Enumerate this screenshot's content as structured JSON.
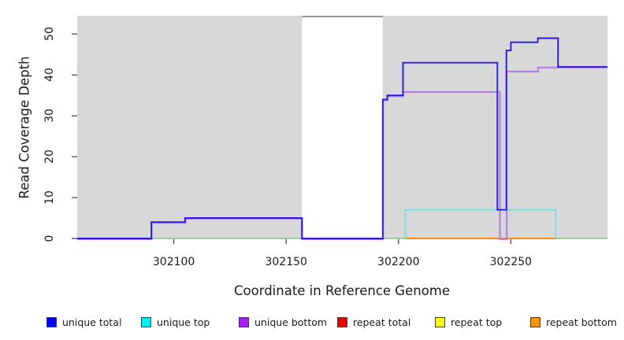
{
  "figure": {
    "background": "#ffffff",
    "plot_background": "#d8d8d8",
    "gap_band_color": "#ffffff",
    "gap_band_border_color": "#999999",
    "tick_color": "#595959",
    "text_color": "#1a1a1a"
  },
  "chart_data": {
    "type": "line",
    "subtype": "step-coverage",
    "title": "",
    "xlabel": "Coordinate in Reference Genome",
    "ylabel": "Read Coverage Depth",
    "xlim": [
      302057,
      302293
    ],
    "ylim": [
      0,
      54.5
    ],
    "x_ticks": [
      302100,
      302150,
      302200,
      302250
    ],
    "y_ticks": [
      0,
      10,
      20,
      30,
      40,
      50
    ],
    "grid": false,
    "legend_position": "bottom",
    "gap_region": {
      "x_start": 302157,
      "x_end": 302193,
      "note": "white band with no coverage data drawn"
    },
    "legend": [
      {
        "label": "unique total",
        "color": "#0000ee"
      },
      {
        "label": "unique top",
        "color": "#00eeee"
      },
      {
        "label": "unique bottom",
        "color": "#a020f0"
      },
      {
        "label": "repeat total",
        "color": "#ee0000"
      },
      {
        "label": "repeat top",
        "color": "#ffff00"
      },
      {
        "label": "repeat bottom",
        "color": "#ff9708"
      }
    ],
    "series": [
      {
        "name": "zero-baseline-overlap",
        "in_legend": false,
        "color": "#8cc98c",
        "width": 1.4,
        "segments": [
          [
            [
              302090,
              0
            ],
            [
              302203,
              0
            ]
          ],
          [
            [
              302270,
              0
            ],
            [
              302293,
              0
            ]
          ]
        ]
      },
      {
        "name": "repeat top",
        "in_legend": true,
        "color": "#f5f500",
        "width": 1.4,
        "segments": [
          [
            [
              302203,
              0
            ],
            [
              302270,
              0
            ]
          ]
        ]
      },
      {
        "name": "repeat total",
        "in_legend": true,
        "color": "#e00000",
        "width": 1.4,
        "segments": [
          [
            [
              302203,
              0
            ],
            [
              302270,
              0
            ]
          ]
        ]
      },
      {
        "name": "repeat bottom",
        "in_legend": true,
        "color": "#ff9708",
        "width": 1.6,
        "segments": [
          [
            [
              302203,
              0
            ],
            [
              302270,
              0
            ]
          ]
        ]
      },
      {
        "name": "unique top",
        "in_legend": true,
        "color": "#7bdcdc",
        "width": 1.7,
        "segments": [
          [
            [
              302203,
              0
            ],
            [
              302203,
              7
            ],
            [
              302270,
              7
            ],
            [
              302270,
              0
            ]
          ]
        ]
      },
      {
        "name": "unique bottom",
        "in_legend": true,
        "color": "#b183e6",
        "width": 2.2,
        "segments": [
          [
            [
              302057,
              0
            ],
            [
              302090,
              0
            ],
            [
              302090,
              4
            ],
            [
              302105,
              4
            ],
            [
              302105,
              5
            ],
            [
              302157,
              5
            ],
            [
              302157,
              0
            ],
            [
              302193,
              0
            ],
            [
              302193,
              34
            ],
            [
              302195,
              34
            ],
            [
              302195,
              35
            ],
            [
              302202,
              35
            ],
            [
              302202,
              36
            ],
            [
              302245,
              36
            ],
            [
              302245,
              0
            ],
            [
              302248,
              0
            ],
            [
              302248,
              41
            ],
            [
              302262,
              41
            ],
            [
              302262,
              42
            ],
            [
              302293,
              42
            ]
          ]
        ]
      },
      {
        "name": "unique total",
        "in_legend": true,
        "color": "#2a1ae6",
        "width": 1.9,
        "segments": [
          [
            [
              302057,
              0
            ],
            [
              302090,
              0
            ],
            [
              302090,
              4
            ],
            [
              302105,
              4
            ],
            [
              302105,
              5
            ],
            [
              302157,
              5
            ],
            [
              302157,
              0
            ],
            [
              302193,
              0
            ],
            [
              302193,
              34
            ],
            [
              302195,
              34
            ],
            [
              302195,
              35
            ],
            [
              302202,
              35
            ],
            [
              302202,
              43
            ],
            [
              302244,
              43
            ],
            [
              302244,
              7
            ],
            [
              302248,
              7
            ],
            [
              302248,
              46
            ],
            [
              302250,
              46
            ],
            [
              302250,
              48
            ],
            [
              302262,
              48
            ],
            [
              302262,
              49
            ],
            [
              302271,
              49
            ],
            [
              302271,
              42
            ],
            [
              302293,
              42
            ]
          ]
        ]
      }
    ]
  }
}
